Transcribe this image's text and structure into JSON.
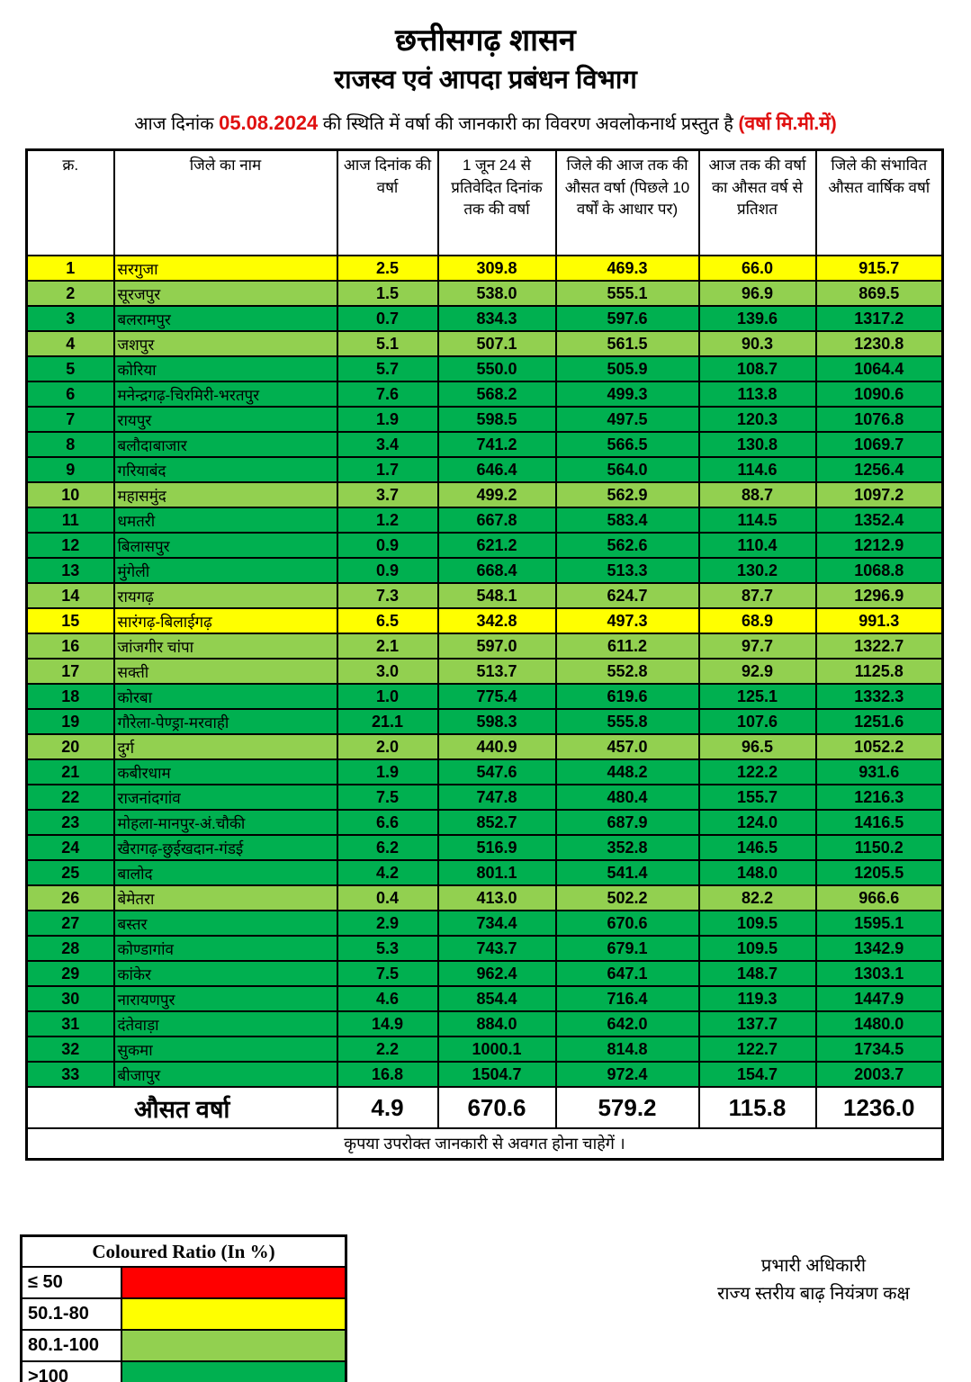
{
  "header": {
    "title": "छत्तीसगढ़ शासन",
    "subtitle": "राजस्व एवं आपदा प्रबंधन विभाग",
    "date_line": {
      "prefix": "आज दिनांक",
      "date": "05.08.2024",
      "middle": "की स्थिति में वर्षा की जानकारी का विवरण अवलोकनार्थ प्रस्तुत है",
      "unit_note": "(वर्षा मि.मी.में)"
    }
  },
  "table": {
    "headers": [
      "क्र.",
      "जिले का नाम",
      "आज दिनांक की वर्षा",
      "1 जून 24 से प्रतिवेदित दिनांक तक की वर्षा",
      "जिले की आज तक की औसत वर्षा (पिछले 10 वर्षों के आधार पर)",
      "आज तक की वर्षा का औसत वर्ष से प्रतिशत",
      "जिले की संभावित औसत वार्षिक वर्षा"
    ],
    "rows": [
      {
        "sno": "1",
        "district": "सरगुजा",
        "today": "2.5",
        "since_june": "309.8",
        "avg_to_date": "469.3",
        "percent": "66.0",
        "annual_avg": "915.7",
        "color": "yellow"
      },
      {
        "sno": "2",
        "district": "सूरजपुर",
        "today": "1.5",
        "since_june": "538.0",
        "avg_to_date": "555.1",
        "percent": "96.9",
        "annual_avg": "869.5",
        "color": "light_green"
      },
      {
        "sno": "3",
        "district": "बलरामपुर",
        "today": "0.7",
        "since_june": "834.3",
        "avg_to_date": "597.6",
        "percent": "139.6",
        "annual_avg": "1317.2",
        "color": "green"
      },
      {
        "sno": "4",
        "district": "जशपुर",
        "today": "5.1",
        "since_june": "507.1",
        "avg_to_date": "561.5",
        "percent": "90.3",
        "annual_avg": "1230.8",
        "color": "light_green"
      },
      {
        "sno": "5",
        "district": "कोरिया",
        "today": "5.7",
        "since_june": "550.0",
        "avg_to_date": "505.9",
        "percent": "108.7",
        "annual_avg": "1064.4",
        "color": "green"
      },
      {
        "sno": "6",
        "district": "मनेन्द्रगढ़-चिरमिरी-भरतपुर",
        "today": "7.6",
        "since_june": "568.2",
        "avg_to_date": "499.3",
        "percent": "113.8",
        "annual_avg": "1090.6",
        "color": "green"
      },
      {
        "sno": "7",
        "district": "रायपुर",
        "today": "1.9",
        "since_june": "598.5",
        "avg_to_date": "497.5",
        "percent": "120.3",
        "annual_avg": "1076.8",
        "color": "green"
      },
      {
        "sno": "8",
        "district": "बलौदाबाजार",
        "today": "3.4",
        "since_june": "741.2",
        "avg_to_date": "566.5",
        "percent": "130.8",
        "annual_avg": "1069.7",
        "color": "green"
      },
      {
        "sno": "9",
        "district": "गरियाबंद",
        "today": "1.7",
        "since_june": "646.4",
        "avg_to_date": "564.0",
        "percent": "114.6",
        "annual_avg": "1256.4",
        "color": "green"
      },
      {
        "sno": "10",
        "district": "महासमुंद",
        "today": "3.7",
        "since_june": "499.2",
        "avg_to_date": "562.9",
        "percent": "88.7",
        "annual_avg": "1097.2",
        "color": "light_green"
      },
      {
        "sno": "11",
        "district": "धमतरी",
        "today": "1.2",
        "since_june": "667.8",
        "avg_to_date": "583.4",
        "percent": "114.5",
        "annual_avg": "1352.4",
        "color": "green"
      },
      {
        "sno": "12",
        "district": "बिलासपुर",
        "today": "0.9",
        "since_june": "621.2",
        "avg_to_date": "562.6",
        "percent": "110.4",
        "annual_avg": "1212.9",
        "color": "green"
      },
      {
        "sno": "13",
        "district": "मुंगेली",
        "today": "0.9",
        "since_june": "668.4",
        "avg_to_date": "513.3",
        "percent": "130.2",
        "annual_avg": "1068.8",
        "color": "green"
      },
      {
        "sno": "14",
        "district": "रायगढ़",
        "today": "7.3",
        "since_june": "548.1",
        "avg_to_date": "624.7",
        "percent": "87.7",
        "annual_avg": "1296.9",
        "color": "light_green"
      },
      {
        "sno": "15",
        "district": "सारंगढ़-बिलाईगढ़",
        "today": "6.5",
        "since_june": "342.8",
        "avg_to_date": "497.3",
        "percent": "68.9",
        "annual_avg": "991.3",
        "color": "yellow"
      },
      {
        "sno": "16",
        "district": "जांजगीर चांपा",
        "today": "2.1",
        "since_june": "597.0",
        "avg_to_date": "611.2",
        "percent": "97.7",
        "annual_avg": "1322.7",
        "color": "light_green"
      },
      {
        "sno": "17",
        "district": "सक्ती",
        "today": "3.0",
        "since_june": "513.7",
        "avg_to_date": "552.8",
        "percent": "92.9",
        "annual_avg": "1125.8",
        "color": "light_green"
      },
      {
        "sno": "18",
        "district": "कोरबा",
        "today": "1.0",
        "since_june": "775.4",
        "avg_to_date": "619.6",
        "percent": "125.1",
        "annual_avg": "1332.3",
        "color": "green"
      },
      {
        "sno": "19",
        "district": "गौरेला-पेण्ड्रा-मरवाही",
        "today": "21.1",
        "since_june": "598.3",
        "avg_to_date": "555.8",
        "percent": "107.6",
        "annual_avg": "1251.6",
        "color": "green"
      },
      {
        "sno": "20",
        "district": "दुर्ग",
        "today": "2.0",
        "since_june": "440.9",
        "avg_to_date": "457.0",
        "percent": "96.5",
        "annual_avg": "1052.2",
        "color": "light_green"
      },
      {
        "sno": "21",
        "district": "कबीरधाम",
        "today": "1.9",
        "since_june": "547.6",
        "avg_to_date": "448.2",
        "percent": "122.2",
        "annual_avg": "931.6",
        "color": "green"
      },
      {
        "sno": "22",
        "district": "राजनांदगांव",
        "today": "7.5",
        "since_june": "747.8",
        "avg_to_date": "480.4",
        "percent": "155.7",
        "annual_avg": "1216.3",
        "color": "green"
      },
      {
        "sno": "23",
        "district": "मोहला-मानपुर-अं.चौकी",
        "today": "6.6",
        "since_june": "852.7",
        "avg_to_date": "687.9",
        "percent": "124.0",
        "annual_avg": "1416.5",
        "color": "green"
      },
      {
        "sno": "24",
        "district": "खैरागढ़-छुईखदान-गंडई",
        "today": "6.2",
        "since_june": "516.9",
        "avg_to_date": "352.8",
        "percent": "146.5",
        "annual_avg": "1150.2",
        "color": "green"
      },
      {
        "sno": "25",
        "district": "बालोद",
        "today": "4.2",
        "since_june": "801.1",
        "avg_to_date": "541.4",
        "percent": "148.0",
        "annual_avg": "1205.5",
        "color": "green"
      },
      {
        "sno": "26",
        "district": "बेमेतरा",
        "today": "0.4",
        "since_june": "413.0",
        "avg_to_date": "502.2",
        "percent": "82.2",
        "annual_avg": "966.6",
        "color": "light_green"
      },
      {
        "sno": "27",
        "district": "बस्तर",
        "today": "2.9",
        "since_june": "734.4",
        "avg_to_date": "670.6",
        "percent": "109.5",
        "annual_avg": "1595.1",
        "color": "green"
      },
      {
        "sno": "28",
        "district": "कोण्डागांव",
        "today": "5.3",
        "since_june": "743.7",
        "avg_to_date": "679.1",
        "percent": "109.5",
        "annual_avg": "1342.9",
        "color": "green"
      },
      {
        "sno": "29",
        "district": "कांकेर",
        "today": "7.5",
        "since_june": "962.4",
        "avg_to_date": "647.1",
        "percent": "148.7",
        "annual_avg": "1303.1",
        "color": "green"
      },
      {
        "sno": "30",
        "district": "नारायणपुर",
        "today": "4.6",
        "since_june": "854.4",
        "avg_to_date": "716.4",
        "percent": "119.3",
        "annual_avg": "1447.9",
        "color": "green"
      },
      {
        "sno": "31",
        "district": "दंतेवाड़ा",
        "today": "14.9",
        "since_june": "884.0",
        "avg_to_date": "642.0",
        "percent": "137.7",
        "annual_avg": "1480.0",
        "color": "green"
      },
      {
        "sno": "32",
        "district": "सुकमा",
        "today": "2.2",
        "since_june": "1000.1",
        "avg_to_date": "814.8",
        "percent": "122.7",
        "annual_avg": "1734.5",
        "color": "green"
      },
      {
        "sno": "33",
        "district": "बीजापुर",
        "today": "16.8",
        "since_june": "1504.7",
        "avg_to_date": "972.4",
        "percent": "154.7",
        "annual_avg": "2003.7",
        "color": "green"
      }
    ],
    "average_row": {
      "label": "औसत वर्षा",
      "today": "4.9",
      "since_june": "670.6",
      "avg_to_date": "579.2",
      "percent": "115.8",
      "annual_avg": "1236.0"
    },
    "note": "कृपया उपरोक्त जानकारी से अवगत होना चाहेगें ।"
  },
  "legend": {
    "title": "Coloured Ratio (In %)",
    "items": [
      {
        "label": "≤ 50",
        "color": "#FF0000"
      },
      {
        "label": "50.1-80",
        "color": "#FFFF00"
      },
      {
        "label": "80.1-100",
        "color": "#92D050"
      },
      {
        "label": ">100",
        "color": "#00B050"
      }
    ]
  },
  "signature": {
    "line1": "प्रभारी अधिकारी",
    "line2": "राज्य स्तरीय बाढ़ नियंत्रण कक्ष"
  },
  "colors": {
    "yellow": "#FFFF00",
    "light_green": "#92D050",
    "green": "#00B050",
    "red": "#FF0000",
    "accent_text_red": "#e01010"
  }
}
